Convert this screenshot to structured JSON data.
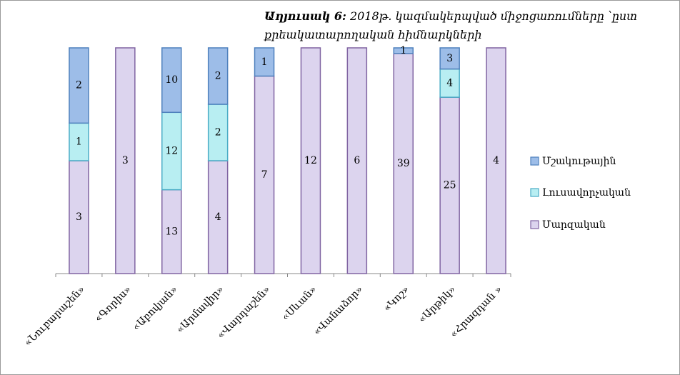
{
  "chart_data": {
    "type": "stacked-percent-bar",
    "title_prefix": "Աղյուսակ 6:",
    "title": "2018թ. կազմակերպված միջոցառումները ՝ըստ քրեակատարողական հիմնարկների",
    "categories": [
      "«Նուբարաշեն»",
      "«Գորիս»",
      "«Աբովյան»",
      "«Արմավիր»",
      "«Վարդաշեն»",
      "«Սևան»",
      "«Վանաձոր»",
      "«Կոշ»",
      "«Արթիկ»",
      "«Հրազդան »"
    ],
    "series": [
      {
        "name": "Մարզական",
        "color": "#dcd4ee",
        "stroke": "#8064a2",
        "values": [
          3,
          3,
          13,
          4,
          7,
          12,
          6,
          39,
          25,
          4
        ]
      },
      {
        "name": "Լուսավորչական",
        "color": "#b8eef2",
        "stroke": "#4bacc6",
        "values": [
          1,
          null,
          12,
          2,
          null,
          null,
          null,
          null,
          4,
          null
        ]
      },
      {
        "name": "Մշակութային",
        "color": "#9dbde8",
        "stroke": "#4f81bd",
        "values": [
          2,
          null,
          10,
          2,
          1,
          null,
          null,
          1,
          3,
          null
        ]
      }
    ],
    "legend": "right"
  }
}
